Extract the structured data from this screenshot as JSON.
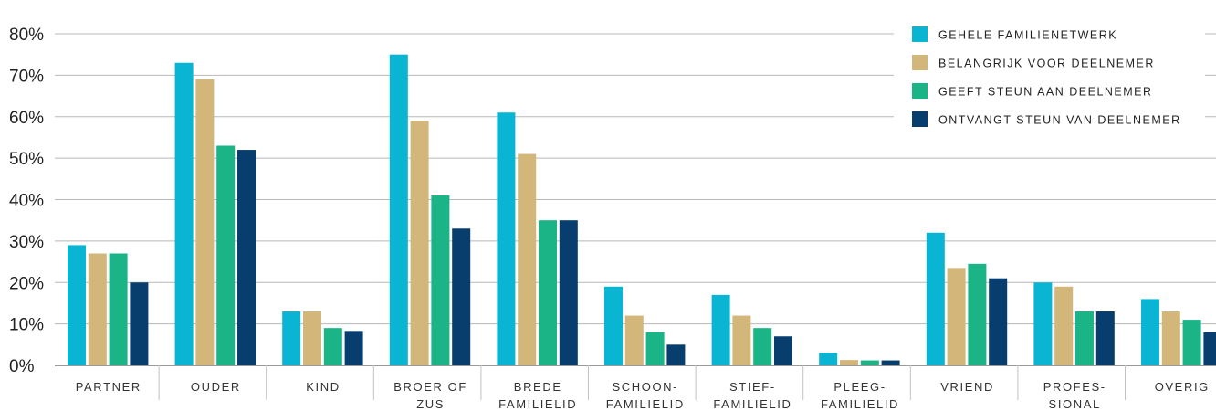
{
  "chart_data": {
    "type": "bar",
    "title": "",
    "xlabel": "",
    "ylabel": "",
    "ylim": [
      0,
      80
    ],
    "yticks": [
      "0%",
      "10%",
      "20%",
      "30%",
      "40%",
      "50%",
      "60%",
      "70%",
      "80%"
    ],
    "grid": true,
    "legend_position": "top-right",
    "categories": [
      [
        "PARTNER"
      ],
      [
        "OUDER"
      ],
      [
        "KIND"
      ],
      [
        "BROER OF",
        "ZUS"
      ],
      [
        "BREDE",
        "FAMILIELID"
      ],
      [
        "SCHOON-",
        "FAMILIELID"
      ],
      [
        "STIEF-",
        "FAMILIELID"
      ],
      [
        "PLEEG-",
        "FAMILIELID"
      ],
      [
        "VRIEND"
      ],
      [
        "PROFES-",
        "SIONAL"
      ],
      [
        "OVERIG"
      ]
    ],
    "series": [
      {
        "name": "GEHELE FAMILIENETWERK",
        "color": "#0ab5d4",
        "values": [
          29,
          73,
          13,
          75,
          61,
          19,
          17,
          3,
          32,
          20,
          16
        ]
      },
      {
        "name": "BELANGRIJK VOOR DEELNEMER",
        "color": "#d3b77a",
        "values": [
          27,
          69,
          13,
          59,
          51,
          12,
          12,
          1.3,
          23.5,
          19,
          13
        ]
      },
      {
        "name": "GEEFT STEUN AAN DEELNEMER",
        "color": "#1ab487",
        "values": [
          27,
          53,
          9,
          41,
          35,
          8,
          9,
          1.2,
          24.5,
          13,
          11
        ]
      },
      {
        "name": "ONTVANGT STEUN VAN DEELNEMER",
        "color": "#073e6e",
        "values": [
          20,
          52,
          8.3,
          33,
          35,
          5,
          7,
          1.2,
          21,
          13,
          8
        ]
      }
    ]
  }
}
